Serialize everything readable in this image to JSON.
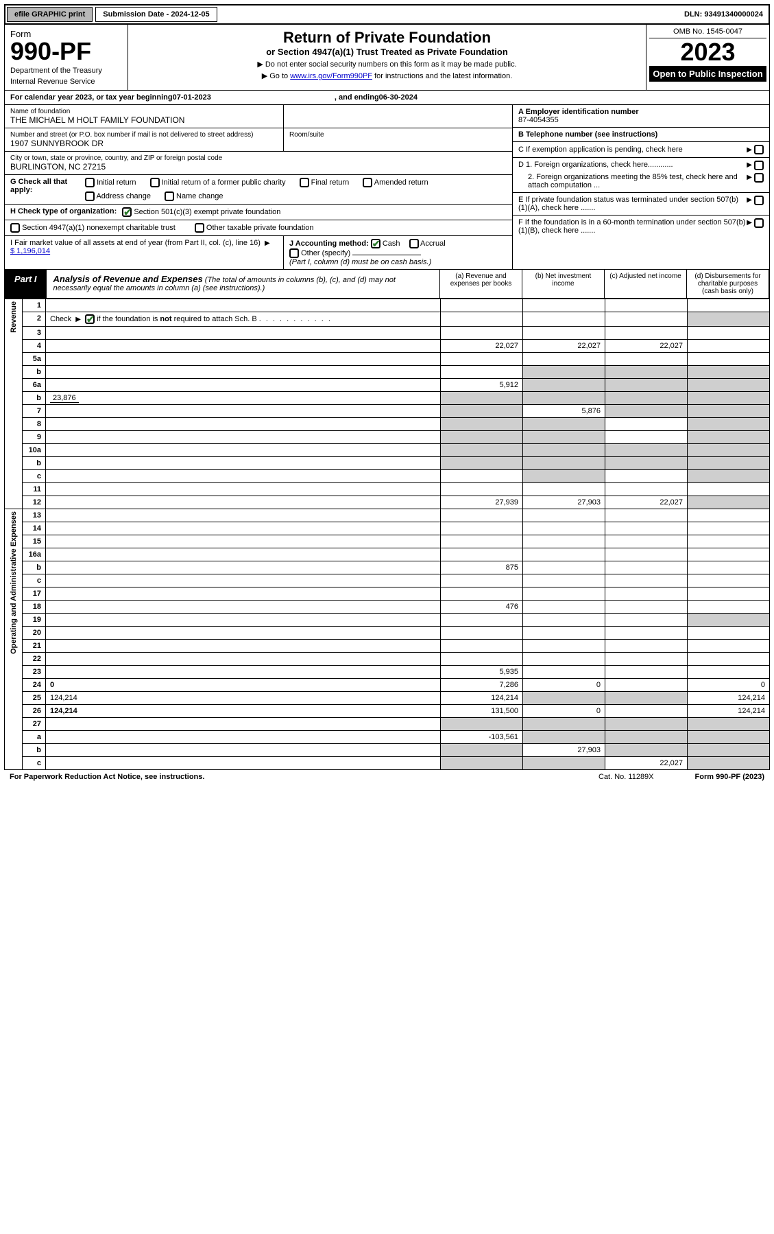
{
  "topbar": {
    "efile": "efile GRAPHIC print",
    "sub_label": "Submission Date - 2024-12-05",
    "dln": "DLN: 93491340000024"
  },
  "header": {
    "form_word": "Form",
    "form_num": "990-PF",
    "dept1": "Department of the Treasury",
    "dept2": "Internal Revenue Service",
    "title": "Return of Private Foundation",
    "sub": "or Section 4947(a)(1) Trust Treated as Private Foundation",
    "note1": "▶ Do not enter social security numbers on this form as it may be made public.",
    "note2_pre": "▶ Go to ",
    "note2_link": "www.irs.gov/Form990PF",
    "note2_post": " for instructions and the latest information.",
    "omb": "OMB No. 1545-0047",
    "year": "2023",
    "open": "Open to Public Inspection"
  },
  "calrow": {
    "pre": "For calendar year 2023, or tax year beginning ",
    "begin": "07-01-2023",
    "mid": ", and ending ",
    "end": "06-30-2024"
  },
  "info": {
    "name_label": "Name of foundation",
    "name": "THE MICHAEL M HOLT FAMILY FOUNDATION",
    "street_label": "Number and street (or P.O. box number if mail is not delivered to street address)",
    "room_label": "Room/suite",
    "street": "1907 SUNNYBROOK DR",
    "city_label": "City or town, state or province, country, and ZIP or foreign postal code",
    "city": "BURLINGTON, NC  27215",
    "a_label": "A Employer identification number",
    "a_val": "87-4054355",
    "b_label": "B Telephone number (see instructions)",
    "c_label": "C If exemption application is pending, check here",
    "d1": "D 1. Foreign organizations, check here............",
    "d2": "2. Foreign organizations meeting the 85% test, check here and attach computation ...",
    "e": "E  If private foundation status was terminated under section 507(b)(1)(A), check here .......",
    "f": "F  If the foundation is in a 60-month termination under section 507(b)(1)(B), check here .......",
    "g_label": "G Check all that apply:",
    "g_opts": [
      "Initial return",
      "Initial return of a former public charity",
      "Final return",
      "Amended return",
      "Address change",
      "Name change"
    ],
    "h_label": "H Check type of organization:",
    "h1": "Section 501(c)(3) exempt private foundation",
    "h2": "Section 4947(a)(1) nonexempt charitable trust",
    "h3": "Other taxable private foundation",
    "i_label": "I Fair market value of all assets at end of year (from Part II, col. (c), line 16)",
    "i_val": "$  1,196,014",
    "j_label": "J Accounting method:",
    "j_cash": "Cash",
    "j_accrual": "Accrual",
    "j_other": "Other (specify)",
    "j_note": "(Part I, column (d) must be on cash basis.)"
  },
  "part1": {
    "tag": "Part I",
    "title": "Analysis of Revenue and Expenses",
    "title_note": " (The total of amounts in columns (b), (c), and (d) may not necessarily equal the amounts in column (a) (see instructions).)",
    "col_a": "(a)   Revenue and expenses per books",
    "col_b": "(b)   Net investment income",
    "col_c": "(c)   Adjusted net income",
    "col_d": "(d)   Disbursements for charitable purposes (cash basis only)"
  },
  "side": {
    "rev": "Revenue",
    "exp": "Operating and Administrative Expenses"
  },
  "rows": [
    {
      "n": "1",
      "d": "",
      "a": "",
      "b": "",
      "c": ""
    },
    {
      "n": "2",
      "d": "",
      "a": "",
      "b": "",
      "c": "",
      "checked": true,
      "dgray": true
    },
    {
      "n": "3",
      "d": "",
      "a": "",
      "b": "",
      "c": ""
    },
    {
      "n": "4",
      "d": "",
      "a": "22,027",
      "b": "22,027",
      "c": "22,027"
    },
    {
      "n": "5a",
      "d": "",
      "a": "",
      "b": "",
      "c": ""
    },
    {
      "n": "b",
      "d": "",
      "a": "",
      "b": "",
      "c": "",
      "sub": true,
      "bcgray": true,
      "dgray": true
    },
    {
      "n": "6a",
      "d": "",
      "a": "5,912",
      "b": "",
      "c": "",
      "bcgray": true,
      "dgray": true
    },
    {
      "n": "b",
      "d": "",
      "extra": "23,876",
      "a": "",
      "b": "",
      "c": "",
      "sub": true,
      "allgray": true
    },
    {
      "n": "7",
      "d": "",
      "a": "",
      "b": "5,876",
      "c": "",
      "agray": true,
      "cgray": true,
      "dgray": true
    },
    {
      "n": "8",
      "d": "",
      "a": "",
      "b": "",
      "c": "",
      "agray": true,
      "bgray": true,
      "dgray": true
    },
    {
      "n": "9",
      "d": "",
      "a": "",
      "b": "",
      "c": "",
      "agray": true,
      "bgray": true,
      "dgray": true
    },
    {
      "n": "10a",
      "d": "",
      "a": "",
      "b": "",
      "c": "",
      "allgray": true
    },
    {
      "n": "b",
      "d": "",
      "a": "",
      "b": "",
      "c": "",
      "sub": true,
      "allgray": true
    },
    {
      "n": "c",
      "d": "",
      "a": "",
      "b": "",
      "c": "",
      "sub": true,
      "bgray": true,
      "dgray": true
    },
    {
      "n": "11",
      "d": "",
      "a": "",
      "b": "",
      "c": ""
    },
    {
      "n": "12",
      "d": "",
      "a": "27,939",
      "b": "27,903",
      "c": "22,027",
      "bold": true,
      "dgray": true
    },
    {
      "n": "13",
      "d": "",
      "a": "",
      "b": "",
      "c": ""
    },
    {
      "n": "14",
      "d": "",
      "a": "",
      "b": "",
      "c": ""
    },
    {
      "n": "15",
      "d": "",
      "a": "",
      "b": "",
      "c": ""
    },
    {
      "n": "16a",
      "d": "",
      "a": "",
      "b": "",
      "c": ""
    },
    {
      "n": "b",
      "d": "",
      "a": "875",
      "b": "",
      "c": "",
      "sub": true
    },
    {
      "n": "c",
      "d": "",
      "a": "",
      "b": "",
      "c": "",
      "sub": true
    },
    {
      "n": "17",
      "d": "",
      "a": "",
      "b": "",
      "c": ""
    },
    {
      "n": "18",
      "d": "",
      "a": "476",
      "b": "",
      "c": ""
    },
    {
      "n": "19",
      "d": "",
      "a": "",
      "b": "",
      "c": "",
      "dgray": true
    },
    {
      "n": "20",
      "d": "",
      "a": "",
      "b": "",
      "c": ""
    },
    {
      "n": "21",
      "d": "",
      "a": "",
      "b": "",
      "c": ""
    },
    {
      "n": "22",
      "d": "",
      "a": "",
      "b": "",
      "c": ""
    },
    {
      "n": "23",
      "d": "",
      "a": "5,935",
      "b": "",
      "c": ""
    },
    {
      "n": "24",
      "d": "0",
      "a": "7,286",
      "b": "0",
      "c": "",
      "bold": true
    },
    {
      "n": "25",
      "d": "124,214",
      "a": "124,214",
      "b": "",
      "c": "",
      "bgray": true,
      "cgray": true
    },
    {
      "n": "26",
      "d": "124,214",
      "a": "131,500",
      "b": "0",
      "c": "",
      "bold": true
    },
    {
      "n": "27",
      "d": "",
      "a": "",
      "b": "",
      "c": "",
      "agray": true,
      "bcgray": true,
      "dgray": true
    },
    {
      "n": "a",
      "d": "",
      "a": "-103,561",
      "b": "",
      "c": "",
      "sub": true,
      "bold": true,
      "bcgray": true,
      "dgray": true
    },
    {
      "n": "b",
      "d": "",
      "a": "",
      "b": "27,903",
      "c": "",
      "sub": true,
      "bold": true,
      "agray": true,
      "cgray": true,
      "dgray": true
    },
    {
      "n": "c",
      "d": "",
      "a": "",
      "b": "",
      "c": "22,027",
      "sub": true,
      "bold": true,
      "agray": true,
      "bgray": true,
      "dgray": true
    }
  ],
  "footer": {
    "pra": "For Paperwork Reduction Act Notice, see instructions.",
    "cat": "Cat. No. 11289X",
    "form": "Form 990-PF (2023)"
  }
}
